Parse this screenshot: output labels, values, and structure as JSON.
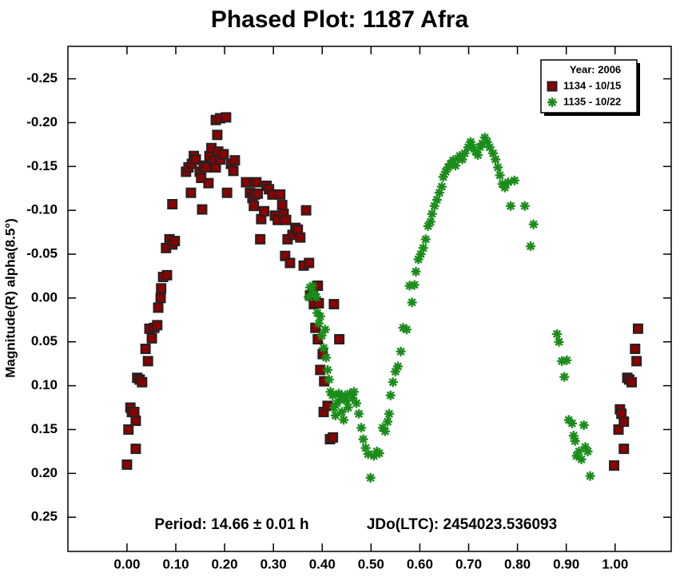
{
  "chart_data": {
    "type": "scatter",
    "title": "Phased Plot: 1187 Afra",
    "y_label": "Magnitude(R) alpha(8.5°)",
    "annotations": [
      "Period: 14.66 ± 0.01 h",
      "JDo(LTC): 2454023.536093"
    ],
    "legend_title": "Year: 2006",
    "legend_position": "upper right",
    "xlim": [
      -0.121,
      1.115
    ],
    "ylim": [
      -0.287,
      0.289
    ],
    "y_inverted": true,
    "xticks": [
      {
        "value": 0,
        "label": "0.00"
      },
      {
        "value": 0.1,
        "label": "0.10"
      },
      {
        "value": 0.2,
        "label": "0.20"
      },
      {
        "value": 0.3,
        "label": "0.30"
      },
      {
        "value": 0.4,
        "label": "0.40"
      },
      {
        "value": 0.5,
        "label": "0.50"
      },
      {
        "value": 0.6,
        "label": "0.60"
      },
      {
        "value": 0.7,
        "label": "0.70"
      },
      {
        "value": 0.8,
        "label": "0.80"
      },
      {
        "value": 0.9,
        "label": "0.90"
      },
      {
        "value": 1,
        "label": "1.00"
      }
    ],
    "yticks": [
      -0.25,
      {
        "value": -0.2,
        "label": "-0.20"
      },
      -0.15,
      {
        "value": -0.1,
        "label": "-0.10"
      },
      -0.05,
      {
        "value": 0,
        "label": "0.00"
      },
      0.05,
      {
        "value": 0.1,
        "label": "0.10"
      },
      0.15,
      {
        "value": 0.2,
        "label": "0.20"
      },
      0.25
    ],
    "series": [
      {
        "name": "1134 - 10/15",
        "color": "#8b0000",
        "marker": "square",
        "x": [
          0.0,
          0.003,
          0.007,
          0.01,
          0.015,
          0.018,
          0.018,
          0.021,
          0.026,
          0.031,
          0.038,
          0.043,
          0.046,
          0.051,
          0.056,
          0.062,
          0.064,
          0.069,
          0.07,
          0.074,
          0.082,
          0.08,
          0.087,
          0.093,
          0.098,
          0.093,
          0.121,
          0.126,
          0.133,
          0.137,
          0.141,
          0.131,
          0.149,
          0.152,
          0.154,
          0.157,
          0.162,
          0.167,
          0.169,
          0.173,
          0.178,
          0.182,
          0.187,
          0.185,
          0.182,
          0.191,
          0.203,
          0.191,
          0.198,
          0.205,
          0.213,
          0.218,
          0.221,
          0.244,
          0.252,
          0.257,
          0.262,
          0.265,
          0.26,
          0.268,
          0.275,
          0.273,
          0.281,
          0.286,
          0.291,
          0.298,
          0.303,
          0.309,
          0.314,
          0.318,
          0.321,
          0.326,
          0.324,
          0.329,
          0.334,
          0.339,
          0.345,
          0.35,
          0.355,
          0.367,
          0.362,
          0.373,
          0.375,
          0.381,
          0.383,
          0.386,
          0.391,
          0.393,
          0.391,
          0.396,
          0.401,
          0.404,
          0.403,
          0.411,
          0.416,
          0.422,
          0.424,
          0.435,
          0.998,
          1.007,
          1.01,
          1.013,
          1.018,
          1.018,
          1.025,
          1.029,
          1.034,
          1.041,
          1.044,
          1.047
        ],
        "values": [
          0.19,
          0.15,
          0.125,
          0.13,
          0.13,
          0.14,
          0.172,
          0.091,
          0.093,
          0.096,
          0.058,
          0.072,
          0.035,
          0.046,
          0.034,
          0.031,
          0.011,
          0.0,
          -0.011,
          -0.024,
          -0.026,
          -0.057,
          -0.067,
          -0.061,
          -0.065,
          -0.107,
          -0.144,
          -0.149,
          -0.153,
          -0.162,
          -0.158,
          -0.12,
          -0.144,
          -0.137,
          -0.101,
          -0.151,
          -0.149,
          -0.131,
          -0.162,
          -0.171,
          -0.156,
          -0.149,
          -0.167,
          -0.186,
          -0.203,
          -0.205,
          -0.206,
          -0.158,
          -0.164,
          -0.12,
          -0.153,
          -0.145,
          -0.157,
          -0.132,
          -0.12,
          -0.114,
          -0.118,
          -0.132,
          -0.105,
          -0.119,
          -0.09,
          -0.067,
          -0.099,
          -0.128,
          -0.124,
          -0.118,
          -0.094,
          -0.089,
          -0.118,
          -0.106,
          -0.096,
          -0.089,
          -0.048,
          -0.067,
          -0.04,
          -0.072,
          -0.08,
          -0.078,
          -0.069,
          -0.1,
          -0.037,
          -0.04,
          -0.003,
          -0.007,
          0.007,
          0.034,
          -0.014,
          0.006,
          0.047,
          0.082,
          0.064,
          0.095,
          0.13,
          0.123,
          0.161,
          0.159,
          0.007,
          0.047,
          0.191,
          0.15,
          0.127,
          0.132,
          0.141,
          0.172,
          0.091,
          0.093,
          0.096,
          0.058,
          0.072,
          0.035
        ]
      },
      {
        "name": "1135 - 10/22",
        "color": "#1a8c1a",
        "marker": "asterisk",
        "x": [
          0.372,
          0.375,
          0.38,
          0.383,
          0.388,
          0.39,
          0.393,
          0.396,
          0.399,
          0.403,
          0.406,
          0.408,
          0.411,
          0.414,
          0.417,
          0.421,
          0.424,
          0.427,
          0.43,
          0.434,
          0.437,
          0.44,
          0.444,
          0.447,
          0.45,
          0.453,
          0.457,
          0.462,
          0.465,
          0.47,
          0.475,
          0.48,
          0.484,
          0.489,
          0.494,
          0.499,
          0.506,
          0.512,
          0.517,
          0.524,
          0.529,
          0.534,
          0.537,
          0.54,
          0.545,
          0.55,
          0.555,
          0.561,
          0.566,
          0.573,
          0.579,
          0.584,
          0.589,
          0.592,
          0.597,
          0.602,
          0.607,
          0.612,
          0.617,
          0.622,
          0.625,
          0.63,
          0.635,
          0.64,
          0.645,
          0.648,
          0.653,
          0.658,
          0.663,
          0.668,
          0.673,
          0.678,
          0.682,
          0.687,
          0.692,
          0.699,
          0.704,
          0.709,
          0.714,
          0.719,
          0.723,
          0.728,
          0.733,
          0.738,
          0.743,
          0.75,
          0.755,
          0.76,
          0.764,
          0.769,
          0.774,
          0.781,
          0.786,
          0.794,
          0.815,
          0.827,
          0.833,
          0.881,
          0.885,
          0.891,
          0.896,
          0.901,
          0.905,
          0.912,
          0.915,
          0.918,
          0.921,
          0.926,
          0.931,
          0.936,
          0.939,
          0.944,
          0.949
        ],
        "values": [
          -0.001,
          -0.012,
          -0.014,
          -0.005,
          -0.001,
          0.017,
          0.029,
          0.021,
          0.043,
          0.057,
          0.036,
          0.068,
          0.082,
          0.093,
          0.107,
          0.111,
          0.125,
          0.134,
          0.12,
          0.109,
          0.116,
          0.13,
          0.139,
          0.111,
          0.117,
          0.125,
          0.109,
          0.114,
          0.107,
          0.12,
          0.132,
          0.148,
          0.161,
          0.171,
          0.178,
          0.205,
          0.18,
          0.175,
          0.177,
          0.148,
          0.152,
          0.141,
          0.132,
          0.111,
          0.096,
          0.084,
          0.078,
          0.061,
          0.034,
          0.036,
          -0.014,
          0.005,
          -0.015,
          -0.03,
          -0.044,
          -0.05,
          -0.057,
          -0.067,
          -0.082,
          -0.087,
          -0.096,
          -0.105,
          -0.112,
          -0.12,
          -0.127,
          -0.138,
          -0.144,
          -0.149,
          -0.153,
          -0.157,
          -0.151,
          -0.159,
          -0.162,
          -0.158,
          -0.165,
          -0.172,
          -0.178,
          -0.172,
          -0.167,
          -0.163,
          -0.172,
          -0.176,
          -0.183,
          -0.178,
          -0.172,
          -0.165,
          -0.158,
          -0.149,
          -0.14,
          -0.13,
          -0.126,
          -0.132,
          -0.105,
          -0.134,
          -0.105,
          -0.059,
          -0.084,
          0.041,
          0.05,
          0.072,
          0.09,
          0.071,
          0.139,
          0.143,
          0.157,
          0.163,
          0.18,
          0.175,
          0.184,
          0.145,
          0.17,
          0.175,
          0.203
        ]
      }
    ]
  }
}
